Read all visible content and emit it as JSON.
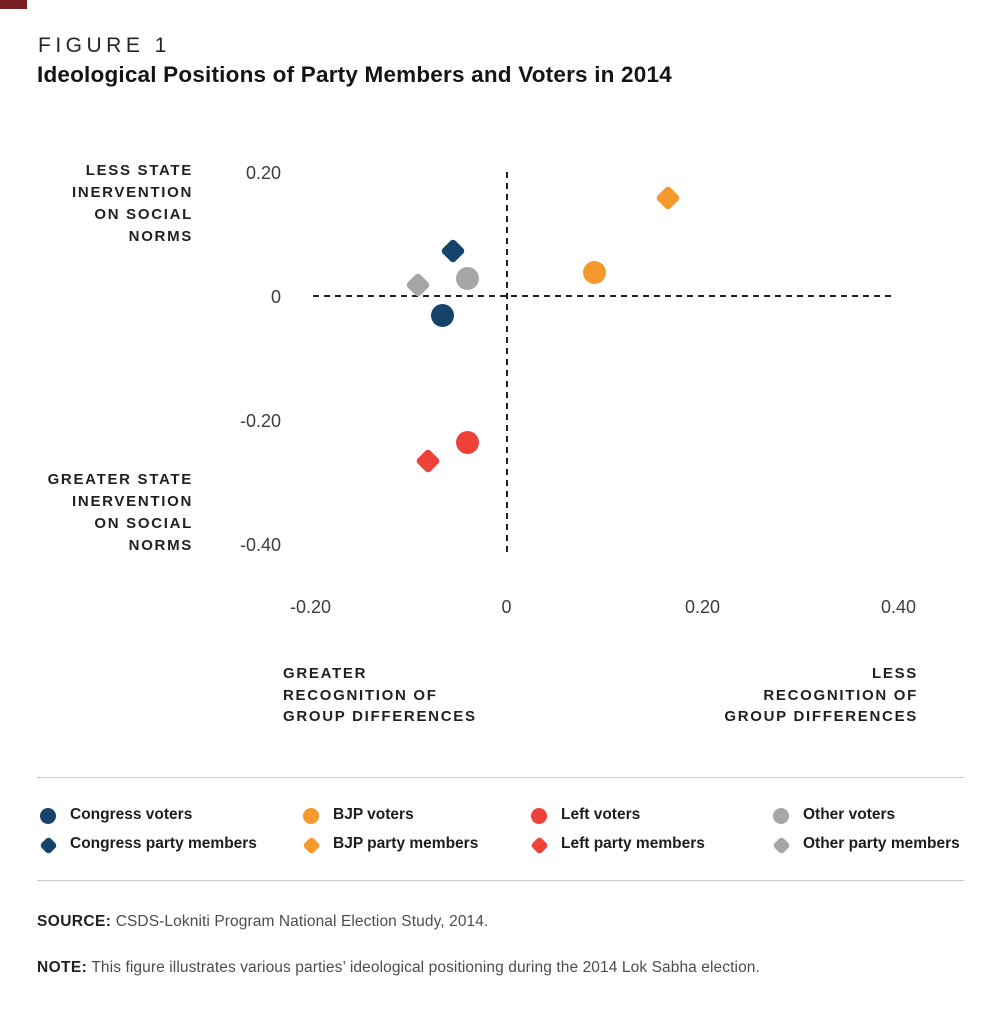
{
  "figure": {
    "kicker": "FIGURE 1",
    "title": "Ideological Positions of Party Members and Voters in 2014"
  },
  "colors": {
    "congress": "#16436B",
    "bjp": "#F6992C",
    "left": "#EE4239",
    "other": "#A7A5A7",
    "accent_corner": "#7A2025",
    "axis_text": "#231F20",
    "divider": "#CBCBCB"
  },
  "chart_data": {
    "type": "scatter",
    "title": "Ideological Positions of Party Members and Voters in 2014",
    "xlabel_left": "GREATER\nRECOGNITION OF\nGROUP DIFFERENCES",
    "xlabel_right": "LESS\nRECOGNITION OF\nGROUP DIFFERENCES",
    "ylabel_top": "LESS STATE\nINERVENTION\nON SOCIAL\nNORMS",
    "ylabel_bottom": "GREATER STATE\nINERVENTION\nON SOCIAL\nNORMS",
    "xlim": [
      -0.25,
      0.45
    ],
    "ylim": [
      -0.45,
      0.25
    ],
    "grid": false,
    "legend_position": "bottom",
    "x_ticks": [
      {
        "value": -0.2,
        "label": "-0.20"
      },
      {
        "value": 0,
        "label": "0"
      },
      {
        "value": 0.2,
        "label": "0.20"
      },
      {
        "value": 0.4,
        "label": "0.40"
      }
    ],
    "y_ticks": [
      {
        "value": 0.2,
        "label": "0.20"
      },
      {
        "value": 0,
        "label": "0"
      },
      {
        "value": -0.2,
        "label": "-0.20"
      },
      {
        "value": -0.4,
        "label": "-0.40"
      }
    ],
    "series": [
      {
        "name": "Congress voters",
        "marker": "circle",
        "color_key": "congress",
        "x": -0.065,
        "y": -0.03
      },
      {
        "name": "Congress party members",
        "marker": "diamond",
        "color_key": "congress",
        "x": -0.055,
        "y": 0.075
      },
      {
        "name": "BJP voters",
        "marker": "circle",
        "color_key": "bjp",
        "x": 0.09,
        "y": 0.04
      },
      {
        "name": "BJP party members",
        "marker": "diamond",
        "color_key": "bjp",
        "x": 0.165,
        "y": 0.16
      },
      {
        "name": "Left voters",
        "marker": "circle",
        "color_key": "left",
        "x": -0.04,
        "y": -0.235
      },
      {
        "name": "Left party members",
        "marker": "diamond",
        "color_key": "left",
        "x": -0.08,
        "y": -0.265
      },
      {
        "name": "Other voters",
        "marker": "circle",
        "color_key": "other",
        "x": -0.04,
        "y": 0.03
      },
      {
        "name": "Other party members",
        "marker": "diamond",
        "color_key": "other",
        "x": -0.09,
        "y": 0.02
      }
    ]
  },
  "legend": {
    "rows": [
      [
        {
          "label": "Congress voters",
          "marker": "circle",
          "color_key": "congress"
        },
        {
          "label": "BJP voters",
          "marker": "circle",
          "color_key": "bjp"
        },
        {
          "label": "Left voters",
          "marker": "circle",
          "color_key": "left"
        },
        {
          "label": "Other voters",
          "marker": "circle",
          "color_key": "other"
        }
      ],
      [
        {
          "label": "Congress party members",
          "marker": "diamond",
          "color_key": "congress"
        },
        {
          "label": "BJP party members",
          "marker": "diamond",
          "color_key": "bjp"
        },
        {
          "label": "Left party members",
          "marker": "diamond",
          "color_key": "left"
        },
        {
          "label": "Other party members",
          "marker": "diamond",
          "color_key": "other"
        }
      ]
    ]
  },
  "footer": {
    "source_label": "SOURCE:",
    "source_text": "CSDS-Lokniti Program National Election Study, 2014.",
    "note_label": "NOTE:",
    "note_text": "This figure illustrates various parties’ ideological positioning during the 2014 Lok Sabha election."
  }
}
